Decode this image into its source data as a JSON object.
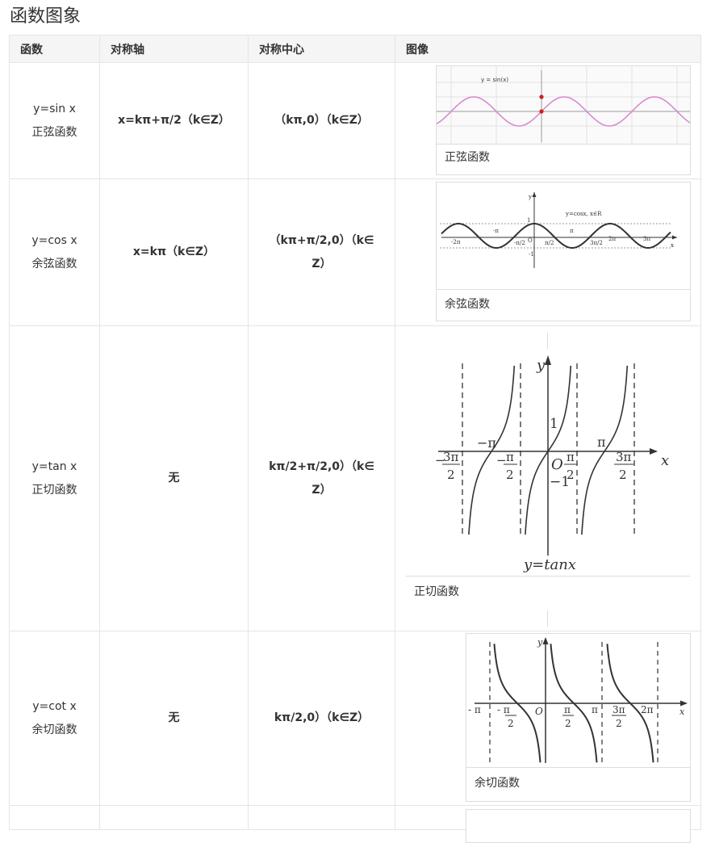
{
  "page_title": "函数图象",
  "headers": [
    "函数",
    "对称轴",
    "对称中心",
    "图像"
  ],
  "rows": [
    {
      "func": "y=sin x",
      "name": "正弦函数",
      "axis": "x=kπ+π/2（k∈Z）",
      "center": "（kπ,0）（k∈Z）",
      "caption": "正弦函数",
      "graph_label": "y = sin(x)"
    },
    {
      "func": "y=cos x",
      "name": "余弦函数",
      "axis": "x=kπ（k∈Z）",
      "center_l1": "（kπ+π/2,0）（k∈",
      "center_l2": "Z）",
      "caption": "余弦函数",
      "graph_label": "y=cosx, x∈R"
    },
    {
      "func": "y=tan x",
      "name": "正切函数",
      "axis": "无",
      "center_l1": "kπ/2+π/2,0）（k∈",
      "center_l2": "Z）",
      "caption": "正切函数",
      "graph_label": "y=tanx"
    },
    {
      "func": "y=cot x",
      "name": "余切函数",
      "axis": "无",
      "center": "kπ/2,0）（k∈Z）",
      "caption": "余切函数"
    }
  ]
}
